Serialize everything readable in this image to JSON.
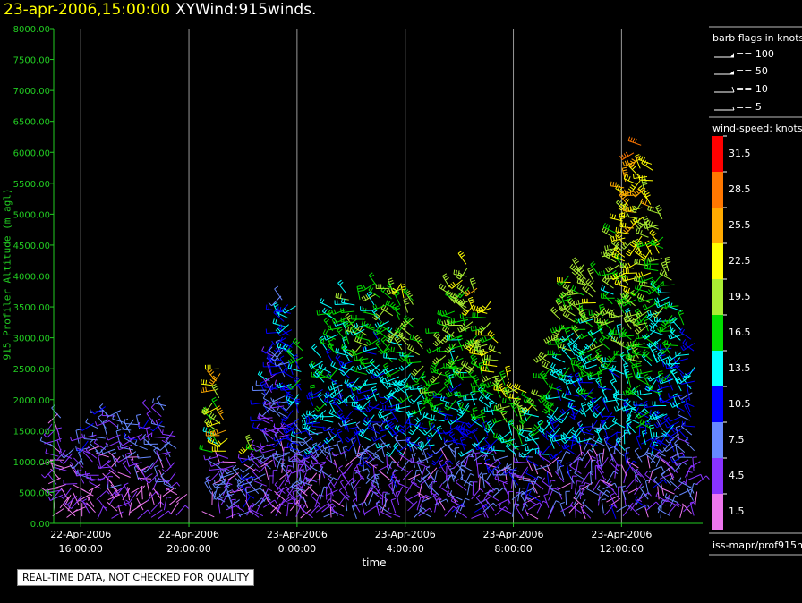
{
  "header": {
    "datetime": "23-apr-2006,15:00:00",
    "product": "XYWind:915winds."
  },
  "footer": {
    "notice": "REAL-TIME DATA, NOT CHECKED FOR QUALITY"
  },
  "barb_legend": {
    "title": "barb flags in knots",
    "items": [
      {
        "label": "== 100",
        "knots": 100
      },
      {
        "label": "== 50",
        "knots": 50
      },
      {
        "label": "== 10",
        "knots": 10
      },
      {
        "label": "== 5",
        "knots": 5
      }
    ]
  },
  "speed_legend": {
    "title": "wind-speed: knots",
    "bins": [
      {
        "label": "31.5",
        "color": "#ff0000"
      },
      {
        "label": "28.5",
        "color": "#ff7700"
      },
      {
        "label": "25.5",
        "color": "#ffaa00"
      },
      {
        "label": "22.5",
        "color": "#ffff00"
      },
      {
        "label": "19.5",
        "color": "#aaee33"
      },
      {
        "label": "16.5",
        "color": "#00dd00"
      },
      {
        "label": "13.5",
        "color": "#00ffff"
      },
      {
        "label": "10.5",
        "color": "#0000ff"
      },
      {
        "label": "7.5",
        "color": "#6688ff"
      },
      {
        "label": "4.5",
        "color": "#8833ff"
      },
      {
        "label": "1.5",
        "color": "#ee77ee"
      }
    ]
  },
  "source_label": "iss-mapr/prof915h",
  "chart_data": {
    "type": "scatter",
    "glyph": "wind-barb",
    "ylabel": "915 Profiler Altitude (m agl)",
    "xlabel": "time",
    "ylim": [
      0,
      8000
    ],
    "y_ticks": [
      "0.00",
      "500.00",
      "1000.00",
      "1500.00",
      "2000.00",
      "2500.00",
      "3000.00",
      "3500.00",
      "4000.00",
      "4500.00",
      "5000.00",
      "5500.00",
      "6000.00",
      "6500.00",
      "7000.00",
      "7500.00",
      "8000.00"
    ],
    "xlim": [
      "2006-04-22T15:00",
      "2006-04-23T15:00"
    ],
    "x_ticks": [
      {
        "time": "2006-04-22T16:00",
        "date": "22-Apr-2006",
        "clock": "16:00:00"
      },
      {
        "time": "2006-04-22T20:00",
        "date": "22-Apr-2006",
        "clock": "20:00:00"
      },
      {
        "time": "2006-04-23T00:00",
        "date": "23-Apr-2006",
        "clock": "0:00:00"
      },
      {
        "time": "2006-04-23T04:00",
        "date": "23-Apr-2006",
        "clock": "4:00:00"
      },
      {
        "time": "2006-04-23T08:00",
        "date": "23-Apr-2006",
        "clock": "8:00:00"
      },
      {
        "time": "2006-04-23T12:00",
        "date": "23-Apr-2006",
        "clock": "12:00:00"
      }
    ],
    "grid": {
      "vertical": true,
      "horizontal": false
    },
    "color_scale": "wind-speed knots",
    "profiles": [
      {
        "hours": 0.1,
        "top_m": 1800,
        "speed_kt": 4
      },
      {
        "hours": 0.4,
        "top_m": 1300,
        "speed_kt": 5
      },
      {
        "hours": 0.8,
        "top_m": 1300,
        "speed_kt": 5
      },
      {
        "hours": 1.2,
        "top_m": 1400,
        "speed_kt": 6
      },
      {
        "hours": 1.6,
        "top_m": 1600,
        "speed_kt": 6
      },
      {
        "hours": 2.0,
        "top_m": 1900,
        "speed_kt": 7
      },
      {
        "hours": 2.4,
        "top_m": 1800,
        "speed_kt": 7
      },
      {
        "hours": 2.8,
        "top_m": 1700,
        "speed_kt": 7
      },
      {
        "hours": 3.2,
        "top_m": 1600,
        "speed_kt": 7
      },
      {
        "hours": 3.6,
        "top_m": 1800,
        "speed_kt": 7
      },
      {
        "hours": 4.0,
        "top_m": 1900,
        "speed_kt": 7
      },
      {
        "hours": 4.4,
        "top_m": 1500,
        "speed_kt": 7
      },
      {
        "hours": 6.0,
        "top_m": 2500,
        "speed_kt": 22
      },
      {
        "hours": 6.3,
        "top_m": 1700,
        "speed_kt": 24
      },
      {
        "hours": 6.6,
        "top_m": 1000,
        "speed_kt": 26
      },
      {
        "hours": 7.0,
        "top_m": 900,
        "speed_kt": 26
      },
      {
        "hours": 7.3,
        "top_m": 1300,
        "speed_kt": 21
      },
      {
        "hours": 7.6,
        "top_m": 1200,
        "speed_kt": 16
      },
      {
        "hours": 7.9,
        "top_m": 2400,
        "speed_kt": 9
      },
      {
        "hours": 8.2,
        "top_m": 2900,
        "speed_kt": 7
      },
      {
        "hours": 8.5,
        "top_m": 3700,
        "speed_kt": 10
      },
      {
        "hours": 8.8,
        "top_m": 3500,
        "speed_kt": 12
      },
      {
        "hours": 9.1,
        "top_m": 2800,
        "speed_kt": 14
      },
      {
        "hours": 9.4,
        "top_m": 1500,
        "speed_kt": 9
      },
      {
        "hours": 9.7,
        "top_m": 2000,
        "speed_kt": 14
      },
      {
        "hours": 10.0,
        "top_m": 2800,
        "speed_kt": 14
      },
      {
        "hours": 10.4,
        "top_m": 3500,
        "speed_kt": 15
      },
      {
        "hours": 10.8,
        "top_m": 3700,
        "speed_kt": 15
      },
      {
        "hours": 11.2,
        "top_m": 3600,
        "speed_kt": 16
      },
      {
        "hours": 11.6,
        "top_m": 3300,
        "speed_kt": 16
      },
      {
        "hours": 12.0,
        "top_m": 3900,
        "speed_kt": 16
      },
      {
        "hours": 12.4,
        "top_m": 3800,
        "speed_kt": 17
      },
      {
        "hours": 12.8,
        "top_m": 3900,
        "speed_kt": 18
      },
      {
        "hours": 13.2,
        "top_m": 3600,
        "speed_kt": 18
      },
      {
        "hours": 13.6,
        "top_m": 2900,
        "speed_kt": 17
      },
      {
        "hours": 14.0,
        "top_m": 2300,
        "speed_kt": 16
      },
      {
        "hours": 14.4,
        "top_m": 3100,
        "speed_kt": 17
      },
      {
        "hours": 14.8,
        "top_m": 3800,
        "speed_kt": 18
      },
      {
        "hours": 15.2,
        "top_m": 4200,
        "speed_kt": 19
      },
      {
        "hours": 15.6,
        "top_m": 3800,
        "speed_kt": 20
      },
      {
        "hours": 16.0,
        "top_m": 3600,
        "speed_kt": 20
      },
      {
        "hours": 16.4,
        "top_m": 3000,
        "speed_kt": 19
      },
      {
        "hours": 16.8,
        "top_m": 2400,
        "speed_kt": 19
      },
      {
        "hours": 17.2,
        "top_m": 2200,
        "speed_kt": 19
      },
      {
        "hours": 17.6,
        "top_m": 2100,
        "speed_kt": 18
      },
      {
        "hours": 18.0,
        "top_m": 2000,
        "speed_kt": 18
      },
      {
        "hours": 18.4,
        "top_m": 2700,
        "speed_kt": 17
      },
      {
        "hours": 18.8,
        "top_m": 3500,
        "speed_kt": 17
      },
      {
        "hours": 19.2,
        "top_m": 4000,
        "speed_kt": 18
      },
      {
        "hours": 19.6,
        "top_m": 4200,
        "speed_kt": 18
      },
      {
        "hours": 20.0,
        "top_m": 4000,
        "speed_kt": 18
      },
      {
        "hours": 20.4,
        "top_m": 3500,
        "speed_kt": 17
      },
      {
        "hours": 20.8,
        "top_m": 4700,
        "speed_kt": 18
      },
      {
        "hours": 21.2,
        "top_m": 5500,
        "speed_kt": 22
      },
      {
        "hours": 21.6,
        "top_m": 6100,
        "speed_kt": 24
      },
      {
        "hours": 22.0,
        "top_m": 5800,
        "speed_kt": 22
      },
      {
        "hours": 22.4,
        "top_m": 5000,
        "speed_kt": 19
      },
      {
        "hours": 22.8,
        "top_m": 4100,
        "speed_kt": 16
      },
      {
        "hours": 23.2,
        "top_m": 3500,
        "speed_kt": 14
      },
      {
        "hours": 23.6,
        "top_m": 3000,
        "speed_kt": 12
      }
    ]
  }
}
